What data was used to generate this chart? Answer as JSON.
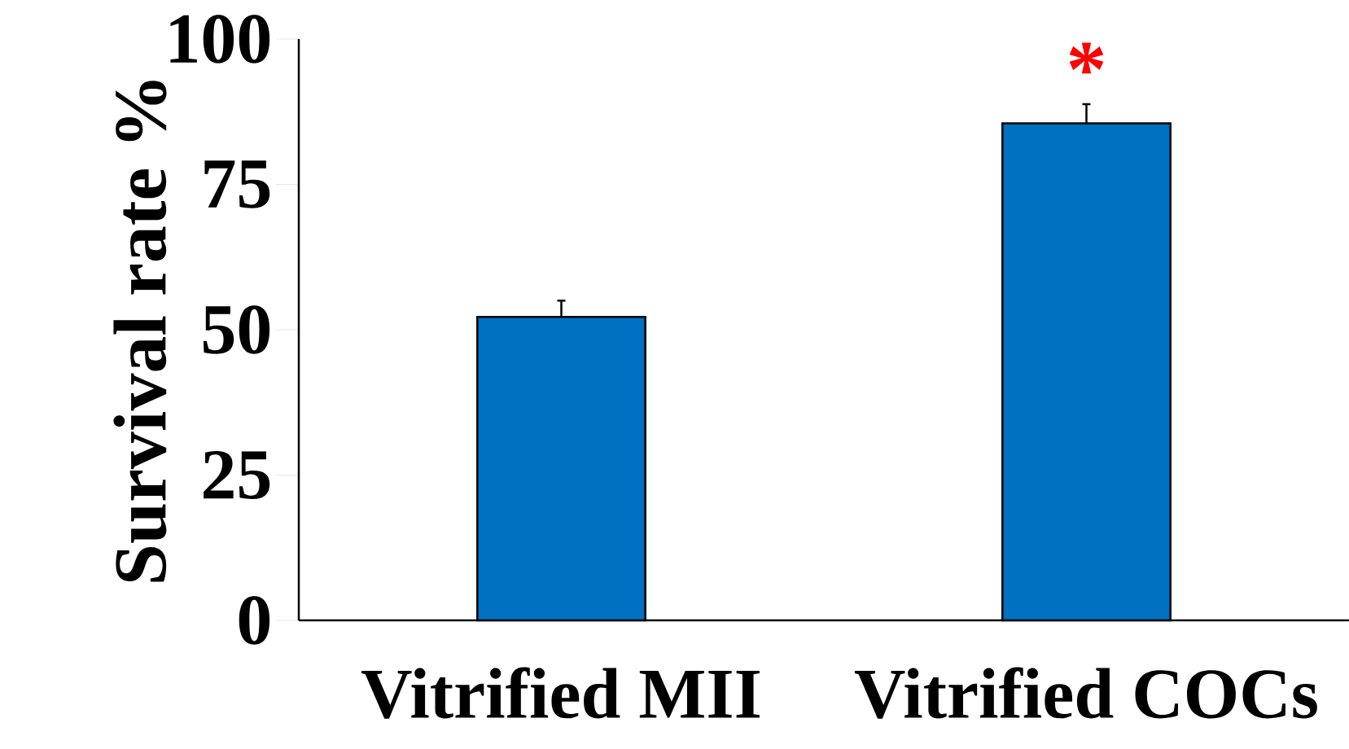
{
  "chart_data": {
    "type": "bar",
    "ylabel": "Survival rate %",
    "categories": [
      "Vitrified MII",
      "Vitrified COCs"
    ],
    "values": [
      52.2,
      85.5
    ],
    "errors": [
      2.8,
      3.3
    ],
    "color": "#0071c1",
    "ylim": [
      0,
      100
    ],
    "yticks": [
      0,
      25,
      50,
      75,
      100
    ],
    "grid": false,
    "annotations": [
      "*"
    ]
  }
}
